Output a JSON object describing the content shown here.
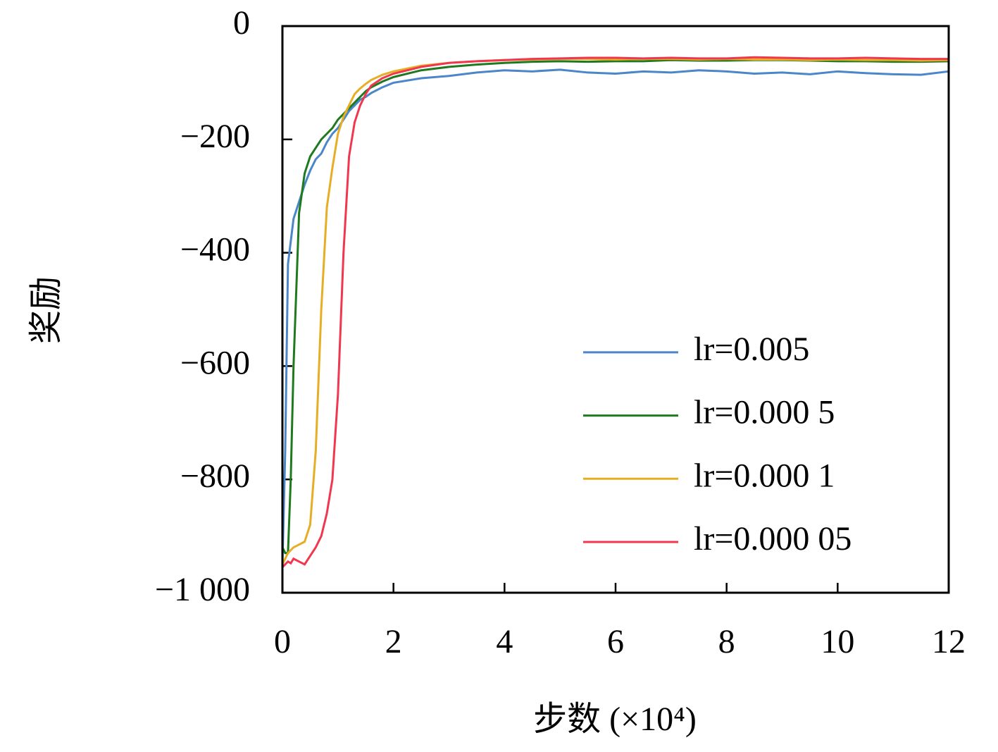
{
  "chart_data": {
    "type": "line",
    "x_label": "步数 (×10⁴)",
    "y_label": "奖励",
    "x": [
      0,
      0.05,
      0.1,
      0.15,
      0.2,
      0.3,
      0.4,
      0.5,
      0.6,
      0.7,
      0.8,
      0.9,
      1.0,
      1.1,
      1.2,
      1.3,
      1.4,
      1.5,
      1.6,
      1.8,
      2.0,
      2.5,
      3,
      3.5,
      4,
      4.5,
      5,
      5.5,
      6,
      6.5,
      7,
      7.5,
      8,
      8.5,
      9,
      9.5,
      10,
      10.5,
      11,
      11.5,
      12
    ],
    "series": [
      {
        "name": "lr=0.005",
        "color": "#4a86c8",
        "values": [
          -950,
          -750,
          -420,
          -380,
          -340,
          -310,
          -280,
          -255,
          -235,
          -225,
          -205,
          -190,
          -180,
          -165,
          -150,
          -140,
          -130,
          -125,
          -118,
          -108,
          -100,
          -92,
          -88,
          -82,
          -78,
          -80,
          -77,
          -82,
          -84,
          -80,
          -82,
          -78,
          -80,
          -84,
          -82,
          -85,
          -80,
          -83,
          -85,
          -86,
          -80
        ]
      },
      {
        "name": "lr=0.000 5",
        "color": "#1f7a1f",
        "values": [
          -920,
          -930,
          -930,
          -800,
          -600,
          -330,
          -260,
          -230,
          -215,
          -200,
          -190,
          -180,
          -165,
          -155,
          -145,
          -135,
          -125,
          -115,
          -108,
          -98,
          -90,
          -78,
          -72,
          -68,
          -65,
          -63,
          -62,
          -63,
          -62,
          -62,
          -60,
          -61,
          -61,
          -60,
          -60,
          -61,
          -62,
          -62,
          -63,
          -63,
          -62
        ]
      },
      {
        "name": "lr=0.000 1",
        "color": "#e6ae25",
        "values": [
          -950,
          -940,
          -930,
          -925,
          -920,
          -915,
          -910,
          -880,
          -750,
          -500,
          -320,
          -250,
          -190,
          -160,
          -140,
          -120,
          -110,
          -102,
          -95,
          -86,
          -80,
          -70,
          -65,
          -62,
          -60,
          -59,
          -58,
          -58,
          -59,
          -58,
          -58,
          -59,
          -58,
          -59,
          -59,
          -60,
          -59,
          -60,
          -60,
          -61,
          -60
        ]
      },
      {
        "name": "lr=0.000 05",
        "color": "#f0374f",
        "values": [
          -955,
          -950,
          -945,
          -948,
          -940,
          -945,
          -950,
          -935,
          -920,
          -900,
          -860,
          -800,
          -650,
          -400,
          -230,
          -170,
          -140,
          -120,
          -105,
          -92,
          -84,
          -72,
          -65,
          -62,
          -60,
          -58,
          -57,
          -56,
          -56,
          -57,
          -56,
          -57,
          -57,
          -55,
          -56,
          -57,
          -57,
          -56,
          -57,
          -58,
          -58
        ]
      }
    ],
    "xlim": [
      0,
      12
    ],
    "xticks": [
      0,
      2,
      4,
      6,
      8,
      10,
      12
    ],
    "ylim": [
      -1000,
      0
    ],
    "yticks": [
      {
        "value": -1000,
        "label": "−1 000"
      },
      {
        "value": -800,
        "label": "−800"
      },
      {
        "value": -600,
        "label": "−600"
      },
      {
        "value": -400,
        "label": "−400"
      },
      {
        "value": -200,
        "label": "−200"
      },
      0
    ],
    "legend": "lower right",
    "grid": false
  }
}
